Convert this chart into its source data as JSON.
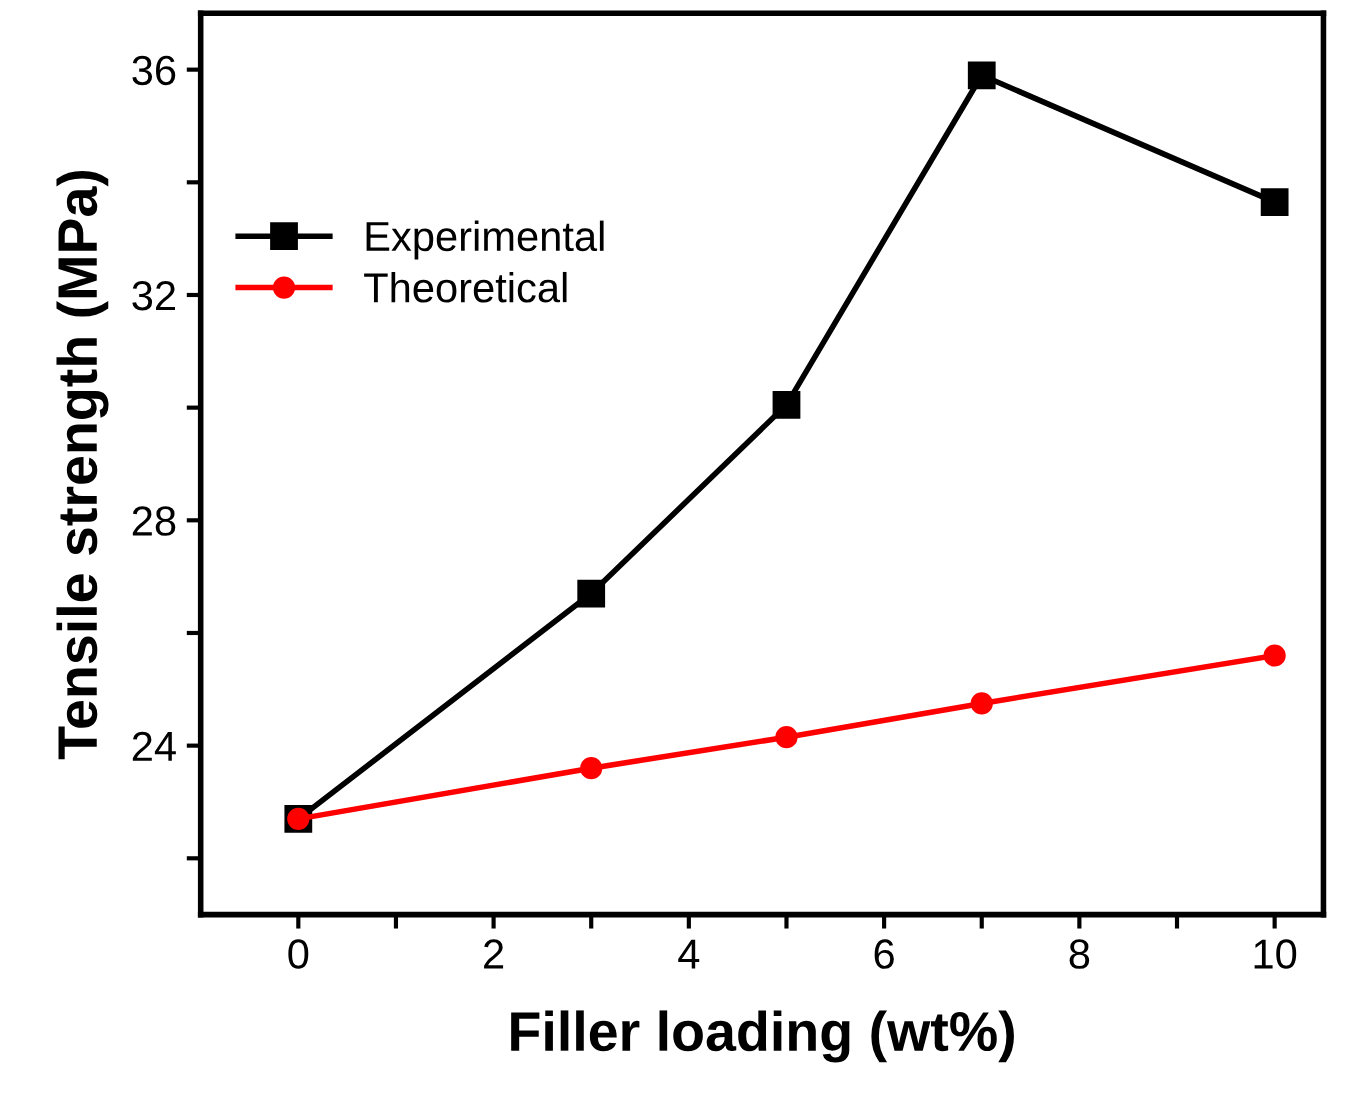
{
  "chart_data": {
    "type": "line",
    "xlabel": "Filler loading (wt%)",
    "ylabel": "Tensile strength (MPa)",
    "x": [
      0,
      3,
      5,
      7,
      10
    ],
    "series": [
      {
        "name": "Experimental",
        "color": "#000000",
        "marker": "square",
        "values": [
          22.7,
          26.7,
          30.05,
          35.9,
          33.65
        ]
      },
      {
        "name": "Theoretical",
        "color": "#ff0000",
        "marker": "circle",
        "values": [
          22.7,
          23.6,
          24.15,
          24.75,
          25.6
        ]
      }
    ],
    "xlim": [
      -1,
      10.5
    ],
    "xticks": [
      0,
      {
        "value": 1,
        "label": null
      },
      2,
      {
        "value": 3,
        "label": null
      },
      4,
      {
        "value": 5,
        "label": null
      },
      6,
      {
        "value": 7,
        "label": null
      },
      8,
      {
        "value": 9,
        "label": null
      },
      10
    ],
    "ylim": [
      21,
      37
    ],
    "yticks": [
      {
        "value": 22,
        "label": null
      },
      24,
      {
        "value": 26,
        "label": null
      },
      28,
      {
        "value": 30,
        "label": null
      },
      32,
      {
        "value": 34,
        "label": null
      },
      36
    ],
    "grid": false,
    "legend": "left",
    "line_style": "solid"
  }
}
